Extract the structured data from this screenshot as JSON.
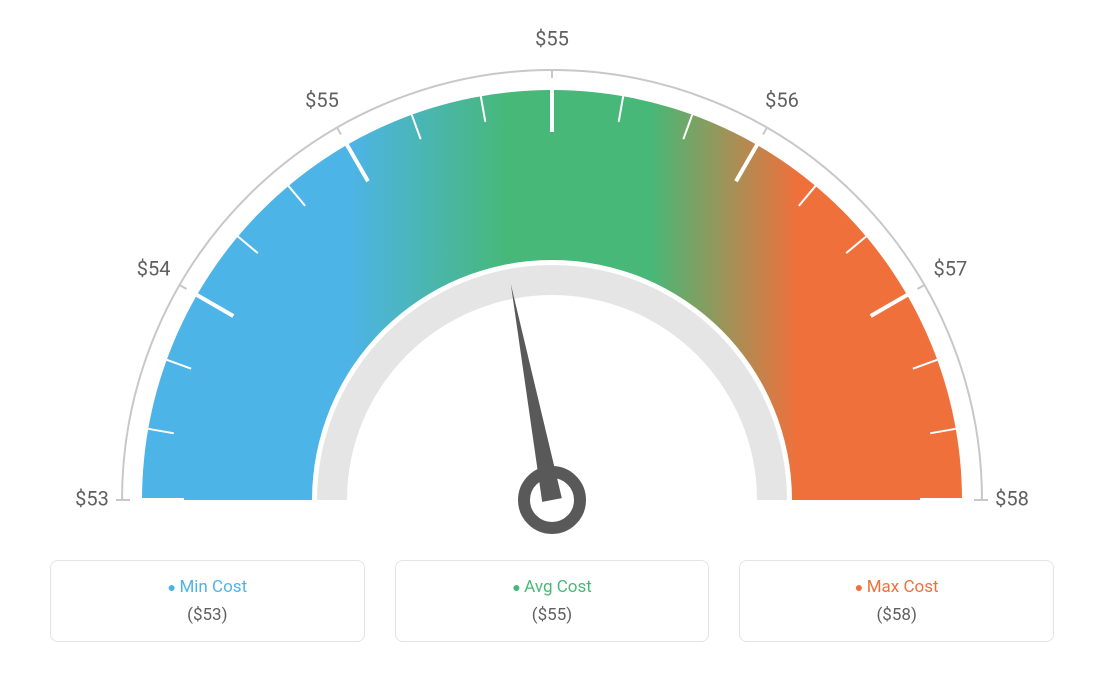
{
  "gauge": {
    "type": "gauge",
    "min_value": 53,
    "max_value": 58,
    "avg_value": 55,
    "needle_value": 55.2,
    "tick_labels": [
      "$53",
      "$54",
      "$55",
      "$55",
      "$56",
      "$57",
      "$58"
    ],
    "tick_label_positions_deg": [
      -90,
      -60,
      -30,
      0,
      30,
      60,
      90
    ],
    "tick_label_fontsize": 20,
    "tick_label_color": "#606060",
    "minor_ticks_per_segment": 2,
    "band_colors": {
      "start": "#4db4e8",
      "mid": "#47b877",
      "end": "#f0703b"
    },
    "band_outer_radius": 410,
    "band_inner_radius": 240,
    "outer_rule_radius": 430,
    "outer_rule_color": "#c8c8c8",
    "outer_rule_width": 2,
    "inner_arc_outer_radius": 235,
    "inner_arc_inner_radius": 205,
    "inner_arc_color": "#e5e5e5",
    "needle_color": "#595959",
    "needle_length": 220,
    "needle_hub_outer_radius": 28,
    "needle_hub_stroke": 12,
    "background_color": "#ffffff",
    "tick_mark_color": "#ffffff",
    "tick_mark_width_major": 4,
    "tick_mark_width_minor": 2
  },
  "legend": {
    "min": {
      "label": "Min Cost",
      "value": "($53)",
      "color": "#4db4e8"
    },
    "avg": {
      "label": "Avg Cost",
      "value": "($55)",
      "color": "#47b877"
    },
    "max": {
      "label": "Max Cost",
      "value": "($58)",
      "color": "#f0703b"
    }
  }
}
